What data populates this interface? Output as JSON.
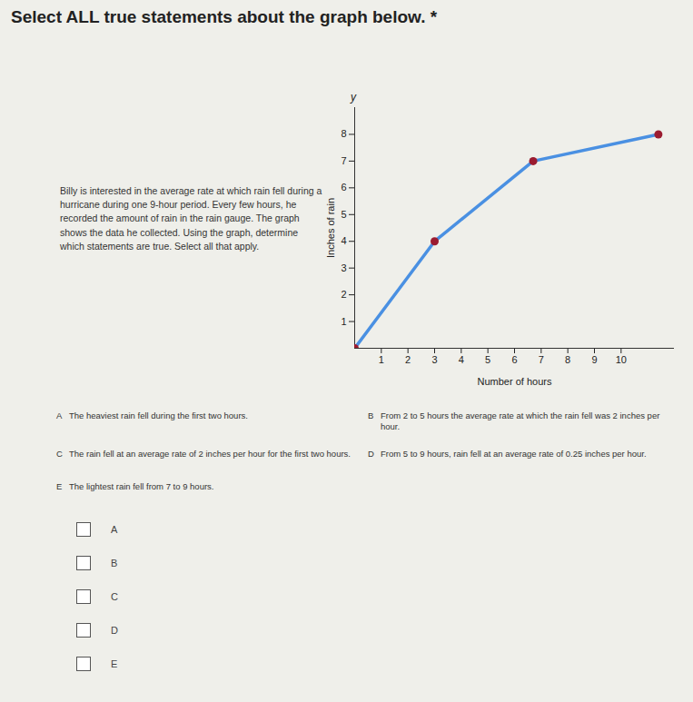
{
  "question": {
    "prompt": "Select ALL true statements about the graph below. *",
    "scenario": "Billy is interested in the average rate at which rain fell during a hurricane during one 9-hour period. Every few hours, he recorded the amount of rain in the rain gauge. The graph shows the data he collected. Using the graph, determine which statements are true. Select all that apply.",
    "statements": [
      {
        "letter": "A",
        "text": "The heaviest rain fell during the first two hours."
      },
      {
        "letter": "B",
        "text": "From 2 to 5 hours the average rate at which the rain fell was 2 inches per hour."
      },
      {
        "letter": "C",
        "text": "The rain fell at an average rate of 2 inches per hour for the first two hours."
      },
      {
        "letter": "D",
        "text": "From 5 to 9 hours, rain fell at an average rate of 0.25 inches per hour."
      },
      {
        "letter": "E",
        "text": "The lightest rain fell from 7 to 9 hours."
      }
    ],
    "options": [
      "A",
      "B",
      "C",
      "D",
      "E"
    ]
  },
  "chart_data": {
    "type": "line",
    "y_symbol": "y",
    "x_label": "Number of hours",
    "y_label": "Inches of rain",
    "x": [
      0,
      3,
      6.7,
      11.4
    ],
    "values": [
      0,
      4,
      7,
      8
    ],
    "color": "#4a90e2",
    "marker": "circle",
    "marker_color": "#9b1b30",
    "xlim": [
      0,
      12
    ],
    "ylim": [
      0,
      9
    ],
    "xticks": [
      1,
      2,
      3,
      4,
      5,
      6,
      7,
      8,
      9,
      10
    ],
    "yticks": [
      1,
      2,
      3,
      4,
      5,
      6,
      7,
      8
    ],
    "grid": false
  }
}
